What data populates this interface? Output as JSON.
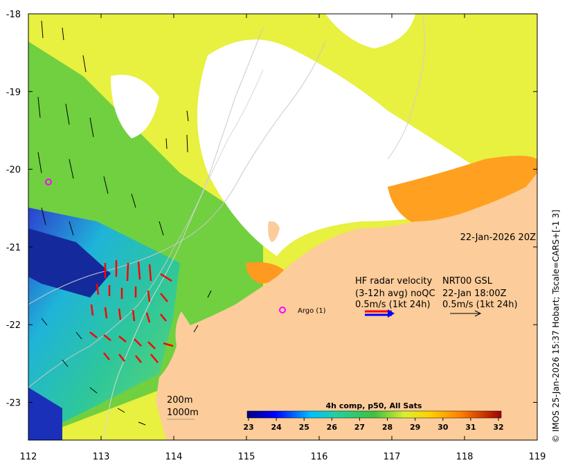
{
  "map": {
    "x_ticks": [
      "112",
      "113",
      "114",
      "115",
      "116",
      "117",
      "118",
      "119"
    ],
    "y_ticks": [
      "-18",
      "-19",
      "-20",
      "-21",
      "-22",
      "-23"
    ],
    "timestamp": "22-Jan-2026 20Z",
    "radar_title": "HF radar velocity",
    "radar_avg": "(3-12h avg) noQC",
    "radar_scale": "0.5m/s (1kt 24h)",
    "model_title": "NRT00 GSL",
    "model_time": "22-Jan 18:00Z",
    "model_scale": "0.5m/s (1kt 24h)",
    "argo_label": "Argo (1)",
    "contour_200": "200m",
    "contour_1000": "1000m",
    "colorbar_title": "4h comp, p50, All Sats",
    "colorbar_ticks": [
      "23",
      "24",
      "25",
      "26",
      "27",
      "28",
      "29",
      "30",
      "31",
      "32"
    ],
    "credit": "© IMOS 25-Jan-2026 15:37 Hobart; Tscale=CARS+[-1 3]",
    "colors": {
      "land": "#fccc9a",
      "radar_arrow": "#ff0000",
      "model_arrow": "#000000",
      "argo": "#ff00ff"
    }
  }
}
